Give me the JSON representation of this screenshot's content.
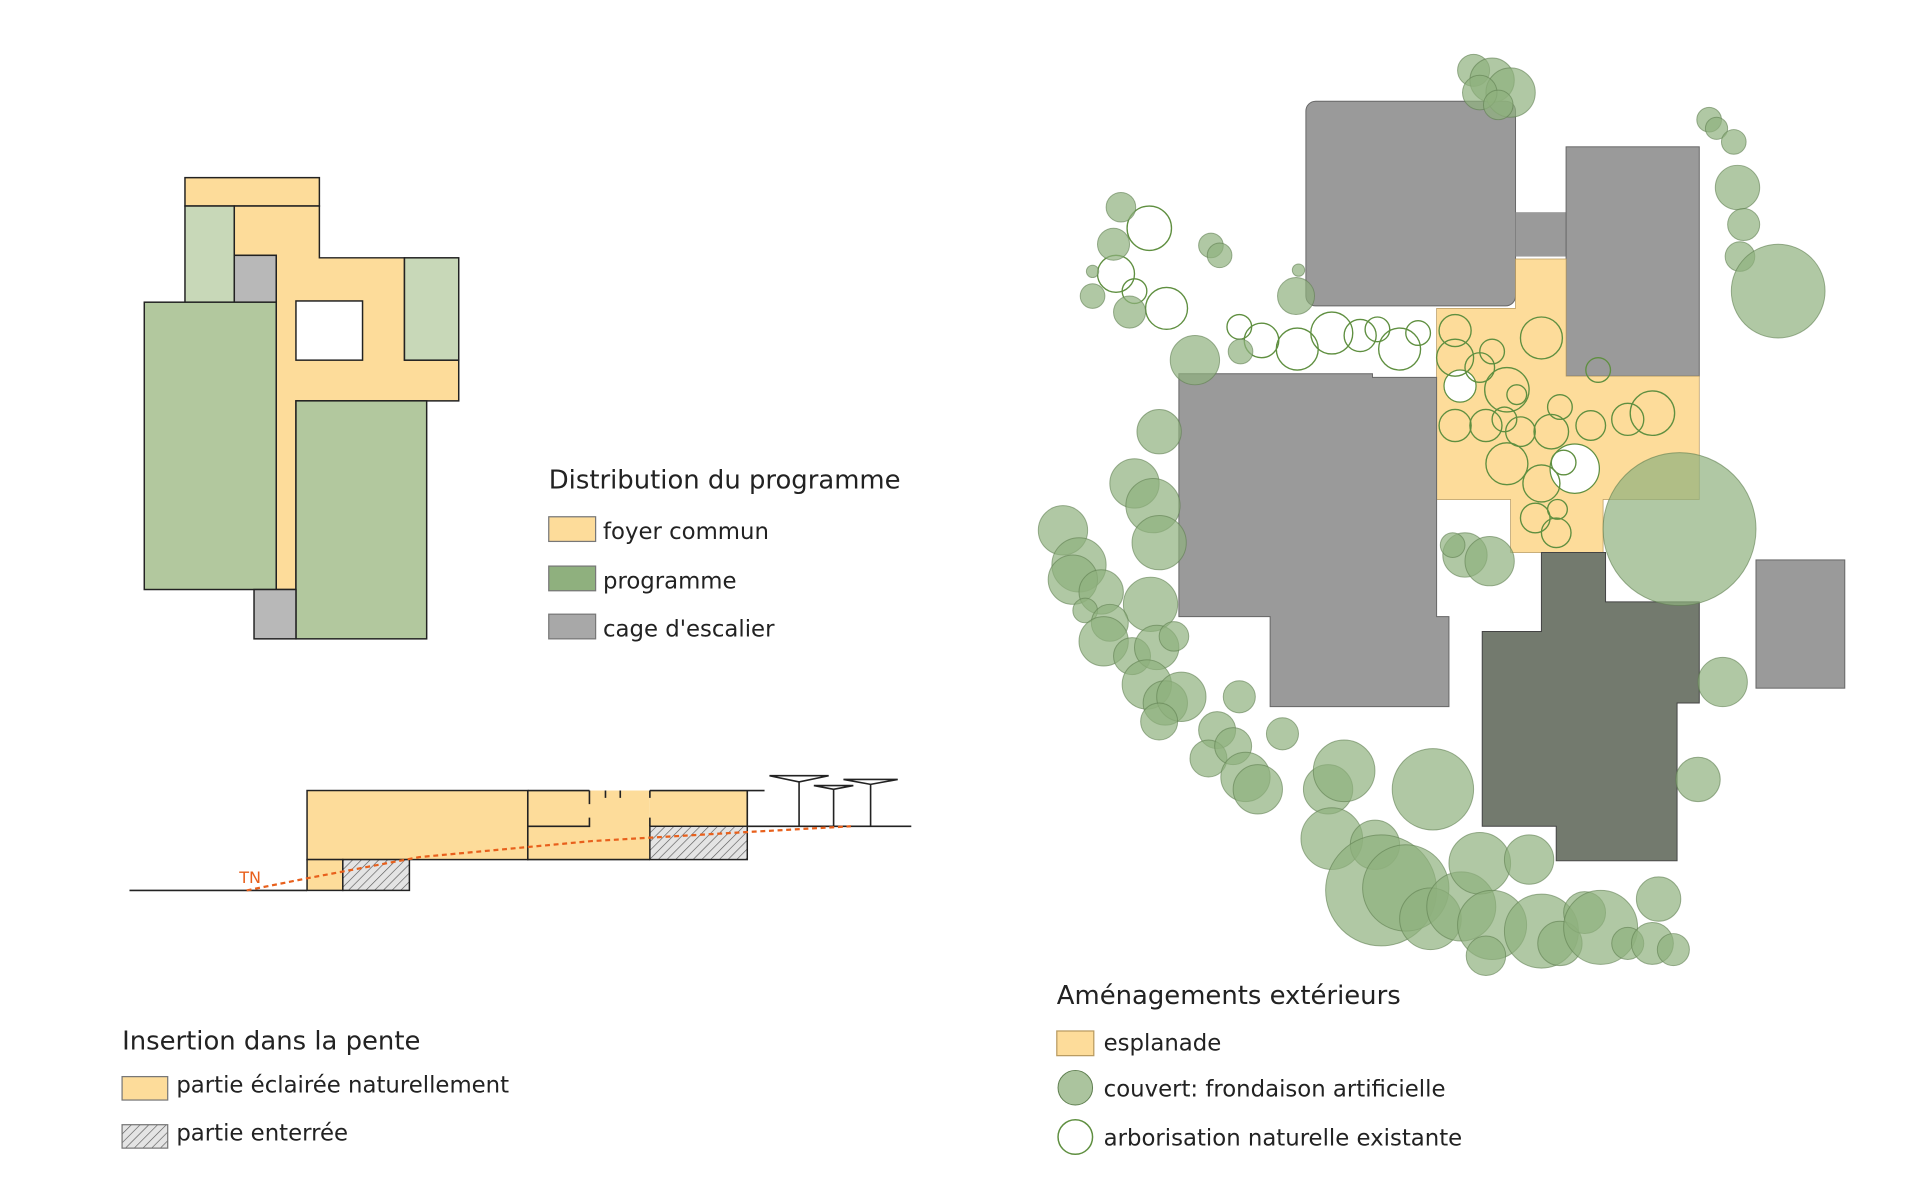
{
  "colors": {
    "foyer": "#fddc9a",
    "programme_light": "#c8d8b8",
    "programme": "#b2c89e",
    "programme_legend": "#8fb07e",
    "stair": "#b8b8b8",
    "building": "#9a9a9a",
    "building_dark": "#737a6e",
    "tn_line": "#e8601c",
    "tree_fill": "#8fb07e",
    "tree_outline": "#5f8f40"
  },
  "distribution": {
    "title": "Distribution du programme",
    "legend": [
      {
        "label": "foyer commun",
        "swatch": "foyer"
      },
      {
        "label": "programme",
        "swatch": "programme"
      },
      {
        "label": "cage d'escalier",
        "swatch": "stair"
      }
    ]
  },
  "section": {
    "tn_label": "TN",
    "title": "Insertion dans la pente",
    "legend": [
      {
        "label": "partie éclairée naturellement",
        "swatch": "solid"
      },
      {
        "label": "partie enterrée",
        "swatch": "hatch"
      }
    ]
  },
  "site": {
    "title": "Aménagements extérieurs",
    "legend": [
      {
        "label": "esplanade",
        "swatch": "rect"
      },
      {
        "label": "couvert: frondaison artificielle",
        "swatch": "filled-circle"
      },
      {
        "label": "arborisation naturelle existante",
        "swatch": "outline-circle"
      }
    ]
  }
}
